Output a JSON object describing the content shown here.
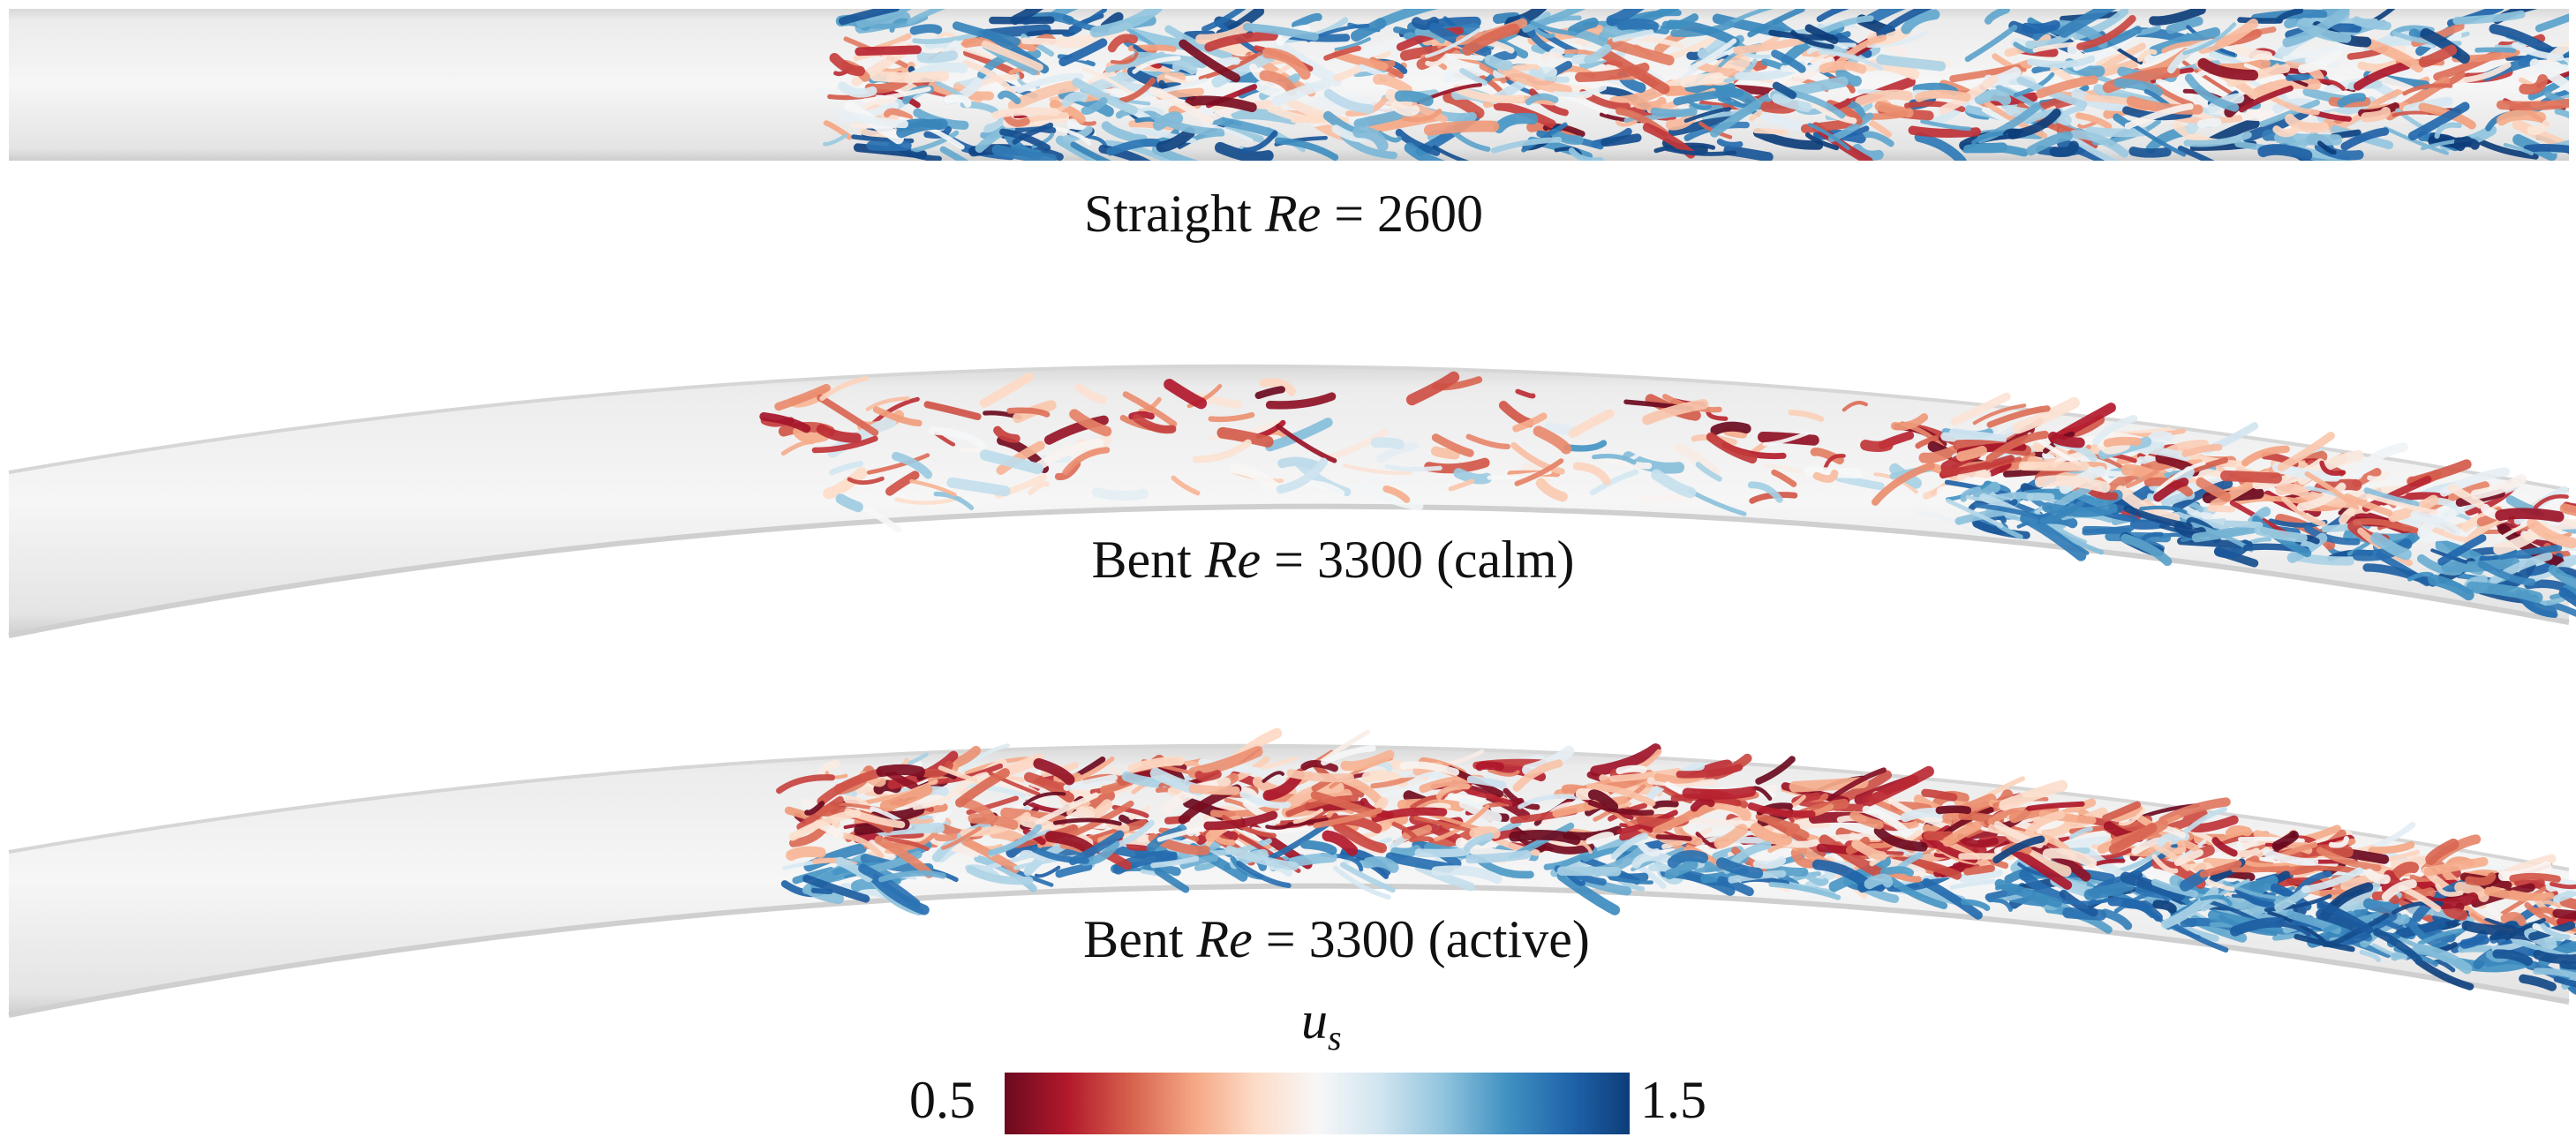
{
  "panels": [
    {
      "id": "straight",
      "prefix": "Straight ",
      "re_symbol": "Re",
      "equals": " = 2600",
      "suffix": ""
    },
    {
      "id": "bent-calm",
      "prefix": "Bent ",
      "re_symbol": "Re",
      "equals": " = 3300 ",
      "suffix": "(calm)"
    },
    {
      "id": "bent-active",
      "prefix": "Bent ",
      "re_symbol": "Re",
      "equals": " = 3300 ",
      "suffix": "(active)"
    }
  ],
  "colorbar": {
    "variable_letter": "u",
    "variable_subscript": "s",
    "min_label": "0.5",
    "max_label": "1.5",
    "min_value": 0.5,
    "max_value": 1.5,
    "colors": [
      "#6b0a1f",
      "#b2182b",
      "#d6604d",
      "#f4a582",
      "#fddbc7",
      "#f7f7f7",
      "#d1e5f0",
      "#92c5de",
      "#4393c3",
      "#2166ac",
      "#0d3d7a"
    ]
  },
  "colors": {
    "pipe_light": "#f4f4f4",
    "pipe_mid": "#e6e6e6",
    "pipe_edge": "#d2d2d2"
  }
}
